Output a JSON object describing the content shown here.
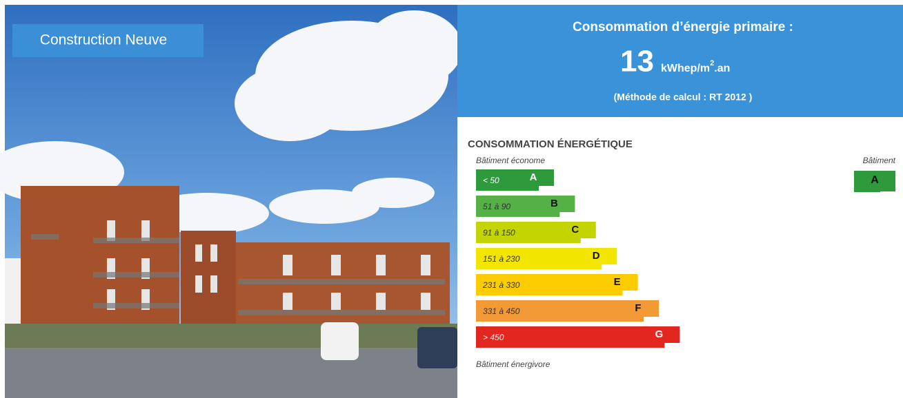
{
  "badge": "Construction Neuve",
  "header": {
    "title": "Consommation d’énergie primaire :",
    "value": "13",
    "unit": "kWhep/m",
    "unit_sup": "2",
    "unit_suffix": ".an",
    "method": "(Méthode de calcul : RT 2012 )"
  },
  "label": {
    "title": "CONSOMMATION ÉNERGÉTIQUE",
    "top_note": "Bâtiment économe",
    "bottom_note": "Bâtiment énergivore",
    "classes": [
      {
        "range": "< 50",
        "letter": "A",
        "color": "#2e9a3c"
      },
      {
        "range": "51 à 90",
        "letter": "B",
        "color": "#55b146"
      },
      {
        "range": "91 à 150",
        "letter": "C",
        "color": "#c4d400"
      },
      {
        "range": "151 à 230",
        "letter": "D",
        "color": "#f2e500"
      },
      {
        "range": "231 à 330",
        "letter": "E",
        "color": "#fccc00"
      },
      {
        "range": "331 à 450",
        "letter": "F",
        "color": "#f39a36"
      },
      {
        "range": "> 450",
        "letter": "G",
        "color": "#e42620"
      }
    ],
    "building": {
      "title": "Bâtiment",
      "letter": "A",
      "color": "#2e9a3c"
    }
  }
}
